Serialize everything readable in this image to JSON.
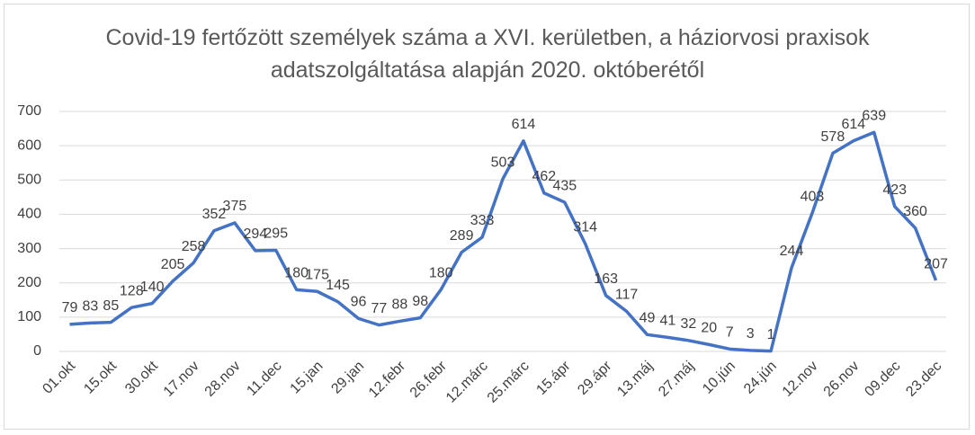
{
  "chart_data": {
    "type": "line",
    "title": "Covid-19 fertőzött személyek száma a XVI. kerületben, a háziorvosi praxisok adatszolgáltatása alapján 2020. októberétől",
    "categories": [
      "01.okt",
      null,
      "15.okt",
      null,
      "30.okt",
      null,
      "17.nov",
      null,
      "28.nov",
      null,
      "11.dec",
      null,
      "15.jan",
      null,
      "29.jan",
      null,
      "12.febr",
      null,
      "26.febr",
      null,
      "12.márc",
      null,
      "25.márc",
      null,
      "15.ápr",
      null,
      "29.ápr",
      null,
      "13.máj",
      null,
      "27.máj",
      null,
      "10.jún",
      null,
      "24.jún",
      null,
      "12.nov",
      null,
      "26.nov",
      null,
      "09.dec",
      null,
      "23.dec"
    ],
    "series": [
      {
        "color": "#4472c4",
        "values": [
          79,
          83,
          85,
          128,
          140,
          205,
          258,
          352,
          375,
          294,
          295,
          180,
          175,
          145,
          96,
          77,
          88,
          98,
          180,
          289,
          333,
          503,
          614,
          462,
          435,
          314,
          163,
          117,
          49,
          41,
          32,
          20,
          7,
          3,
          1,
          244,
          403,
          578,
          614,
          639,
          423,
          360,
          207
        ]
      }
    ],
    "ylim": [
      0,
      700
    ],
    "yticks": [
      0,
      100,
      200,
      300,
      400,
      500,
      600,
      700
    ],
    "grid": true
  }
}
